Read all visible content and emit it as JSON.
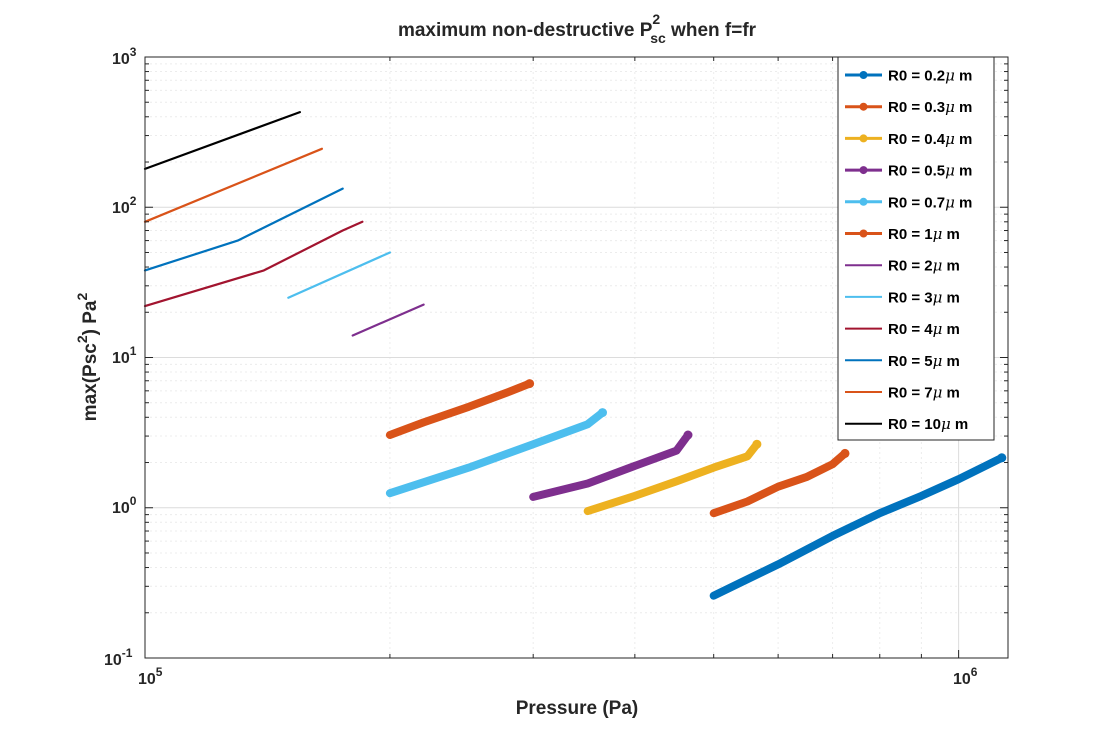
{
  "chart_data": {
    "type": "line",
    "title": {
      "prefix": "maximum non-destructive P",
      "sup": "2",
      "sub": "sc",
      "suffix": " when f=fr"
    },
    "xlabel": "Pressure (Pa)",
    "ylabel": {
      "prefix": "max(Psc",
      "sup1": "2",
      "mid": ") Pa",
      "sup2": "2"
    },
    "xscale": "log",
    "yscale": "log",
    "xlim": [
      100000,
      1150000
    ],
    "ylim": [
      0.1,
      1000
    ],
    "grid": true,
    "legend_location": "top-right",
    "x_ticks": [
      {
        "value": 100000,
        "base": "10",
        "exp": "5"
      },
      {
        "value": 1000000,
        "base": "10",
        "exp": "6"
      }
    ],
    "y_ticks": [
      {
        "value": 0.1,
        "base": "10",
        "exp": "-1"
      },
      {
        "value": 1,
        "base": "10",
        "exp": "0"
      },
      {
        "value": 10,
        "base": "10",
        "exp": "1"
      },
      {
        "value": 100,
        "base": "10",
        "exp": "2"
      },
      {
        "value": 1000,
        "base": "10",
        "exp": "3"
      }
    ],
    "series": [
      {
        "name": "R0 = 0.2μ m",
        "label_prefix": "R0 = 0.2",
        "color": "#0072BD",
        "style": "marker",
        "x": [
          500000,
          600000,
          700000,
          800000,
          900000,
          1000000,
          1130000
        ],
        "y": [
          0.26,
          0.42,
          0.65,
          0.92,
          1.2,
          1.55,
          2.15
        ]
      },
      {
        "name": "R0 = 0.3μ m",
        "label_prefix": "R0 = 0.3",
        "color": "#D95319",
        "style": "marker",
        "x": [
          500000,
          550000,
          600000,
          650000,
          700000,
          725000
        ],
        "y": [
          0.92,
          1.1,
          1.38,
          1.6,
          1.95,
          2.3
        ]
      },
      {
        "name": "R0 = 0.4μ m",
        "label_prefix": "R0 = 0.4",
        "color": "#EDB120",
        "style": "marker",
        "x": [
          350000,
          400000,
          450000,
          500000,
          550000,
          565000
        ],
        "y": [
          0.95,
          1.2,
          1.5,
          1.85,
          2.2,
          2.65
        ]
      },
      {
        "name": "R0 = 0.5μ m",
        "label_prefix": "R0 = 0.5",
        "color": "#7E2F8E",
        "style": "marker",
        "x": [
          300000,
          350000,
          400000,
          450000,
          465000
        ],
        "y": [
          1.18,
          1.45,
          1.9,
          2.4,
          3.05
        ]
      },
      {
        "name": "R0 = 0.7μ m",
        "label_prefix": "R0 = 0.7",
        "color": "#4DBEEE",
        "style": "marker",
        "x": [
          200000,
          250000,
          300000,
          350000,
          365000
        ],
        "y": [
          1.25,
          1.85,
          2.65,
          3.6,
          4.3
        ]
      },
      {
        "name": "R0 = 1μ m",
        "label_prefix": "R0 = 1",
        "color": "#D95319",
        "style": "marker",
        "x": [
          200000,
          220000,
          250000,
          280000,
          297000
        ],
        "y": [
          3.05,
          3.7,
          4.7,
          5.9,
          6.7
        ]
      },
      {
        "name": "R0 = 2μ m",
        "label_prefix": "R0 = 2",
        "color": "#7E2F8E",
        "style": "line",
        "x": [
          180000,
          220000
        ],
        "y": [
          14,
          22.5
        ]
      },
      {
        "name": "R0 = 3μ m",
        "label_prefix": "R0 = 3",
        "color": "#4DBEEE",
        "style": "line",
        "x": [
          150000,
          200000
        ],
        "y": [
          25,
          50
        ]
      },
      {
        "name": "R0 = 4μ m",
        "label_prefix": "R0 = 4",
        "color": "#A2142F",
        "style": "line",
        "x": [
          100000,
          140000,
          175000,
          185000
        ],
        "y": [
          22,
          38,
          70,
          80
        ]
      },
      {
        "name": "R0 = 5μ m",
        "label_prefix": "R0 = 5",
        "color": "#0072BD",
        "style": "line",
        "x": [
          100000,
          130000,
          175000
        ],
        "y": [
          38,
          60,
          133
        ]
      },
      {
        "name": "R0 = 7μ m",
        "label_prefix": "R0 = 7",
        "color": "#D95319",
        "style": "line",
        "x": [
          100000,
          165000
        ],
        "y": [
          80,
          245
        ]
      },
      {
        "name": "R0 = 10μ m",
        "label_prefix": "R0 = 10",
        "color": "#000000",
        "style": "line",
        "x": [
          100000,
          155000
        ],
        "y": [
          180,
          430
        ]
      }
    ]
  }
}
